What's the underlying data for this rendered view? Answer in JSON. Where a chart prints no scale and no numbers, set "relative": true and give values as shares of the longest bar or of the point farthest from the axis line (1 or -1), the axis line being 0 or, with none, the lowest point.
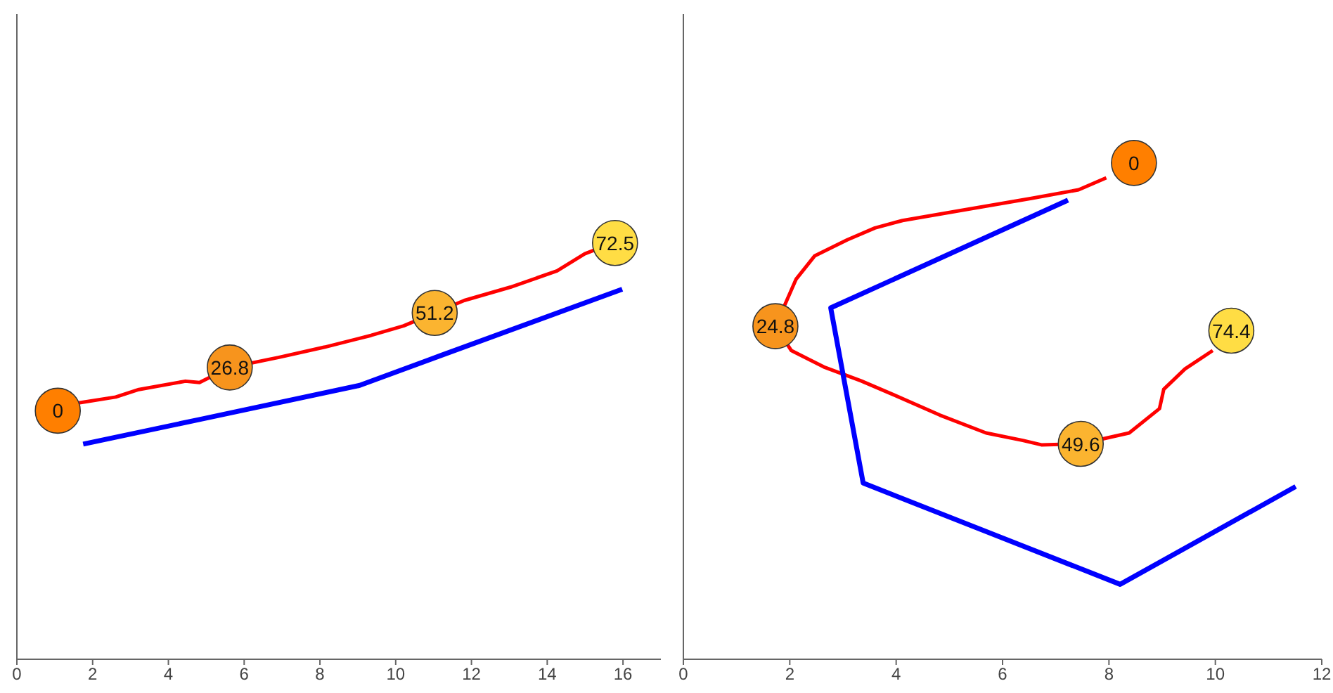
{
  "chart_data": [
    {
      "type": "line",
      "relative": true,
      "xlim": [
        0,
        17
      ],
      "xticks": [
        0,
        2,
        4,
        6,
        8,
        10,
        12,
        14,
        16
      ],
      "tick_labels": "x",
      "series": [
        {
          "color": "#ff0000",
          "x": [
            1.63,
            2.61,
            3.22,
            4.45,
            4.82,
            5.62,
            6.9,
            8.13,
            9.35,
            10.21,
            11.81,
            13.03,
            14.26,
            14.99,
            15.3
          ],
          "values": [
            0.616,
            0.63,
            0.648,
            0.668,
            0.665,
            0.701,
            0.725,
            0.75,
            0.778,
            0.801,
            0.862,
            0.894,
            0.933,
            0.974,
            0.985
          ]
        },
        {
          "color": "#0000ff",
          "x": [
            1.75,
            4.82,
            9.05,
            11.2,
            15.98
          ],
          "values": [
            0.517,
            0.576,
            0.658,
            0.73,
            0.889
          ]
        },
        {
          "type": "scatter",
          "marker": "circle",
          "x": [
            1.08,
            5.62,
            11.03,
            15.79
          ],
          "values": [
            0.597,
            0.701,
            0.832,
            1
          ],
          "colors": [
            "#ff7f00",
            "#f7941d",
            "#fbb430",
            "#ffdd44"
          ]
        }
      ],
      "annotations": [
        {
          "text": "0",
          "x": 1.08,
          "y": 0.597
        },
        {
          "text": "26.8",
          "x": 5.62,
          "y": 0.701
        },
        {
          "text": "51.2",
          "x": 11.03,
          "y": 0.832
        },
        {
          "text": "72.5",
          "x": 15.79,
          "y": 1
        }
      ]
    },
    {
      "type": "line",
      "relative": true,
      "xlim": [
        0,
        12
      ],
      "xticks": [
        0,
        2,
        4,
        6,
        8,
        10,
        12
      ],
      "tick_labels": "x",
      "series": [
        {
          "color": "#ff0000",
          "x": [
            7.95,
            7.43,
            6.56,
            5.25,
            4.12,
            3.6,
            3.08,
            2.47,
            2.12,
            1.73,
            2.03,
            2.64,
            3.34,
            3.95,
            4.82,
            5.69,
            6.38,
            6.73,
            7.47,
            8.38,
            8.95,
            9.03,
            9.43,
            9.95
          ],
          "values": [
            0.97,
            0.946,
            0.929,
            0.905,
            0.884,
            0.869,
            0.845,
            0.813,
            0.766,
            0.671,
            0.622,
            0.589,
            0.561,
            0.533,
            0.492,
            0.456,
            0.441,
            0.432,
            0.434,
            0.456,
            0.505,
            0.544,
            0.585,
            0.622
          ]
        },
        {
          "color": "#0000ff",
          "x": [
            7.23,
            2.77,
            3.38,
            8.21,
            11.51
          ],
          "values": [
            0.925,
            0.708,
            0.355,
            0.151,
            0.348
          ]
        },
        {
          "type": "scatter",
          "marker": "circle",
          "x": [
            8.47,
            1.73,
            7.47,
            10.3
          ],
          "values": [
            1,
            0.671,
            0.434,
            0.662
          ],
          "colors": [
            "#ff7f00",
            "#f7941d",
            "#fbb430",
            "#ffdd44"
          ]
        }
      ],
      "annotations": [
        {
          "text": "0",
          "x": 8.47,
          "y": 1
        },
        {
          "text": "24.8",
          "x": 1.73,
          "y": 0.671
        },
        {
          "text": "49.6",
          "x": 7.47,
          "y": 0.434
        },
        {
          "text": "74.4",
          "x": 10.3,
          "y": 0.662
        }
      ]
    }
  ]
}
